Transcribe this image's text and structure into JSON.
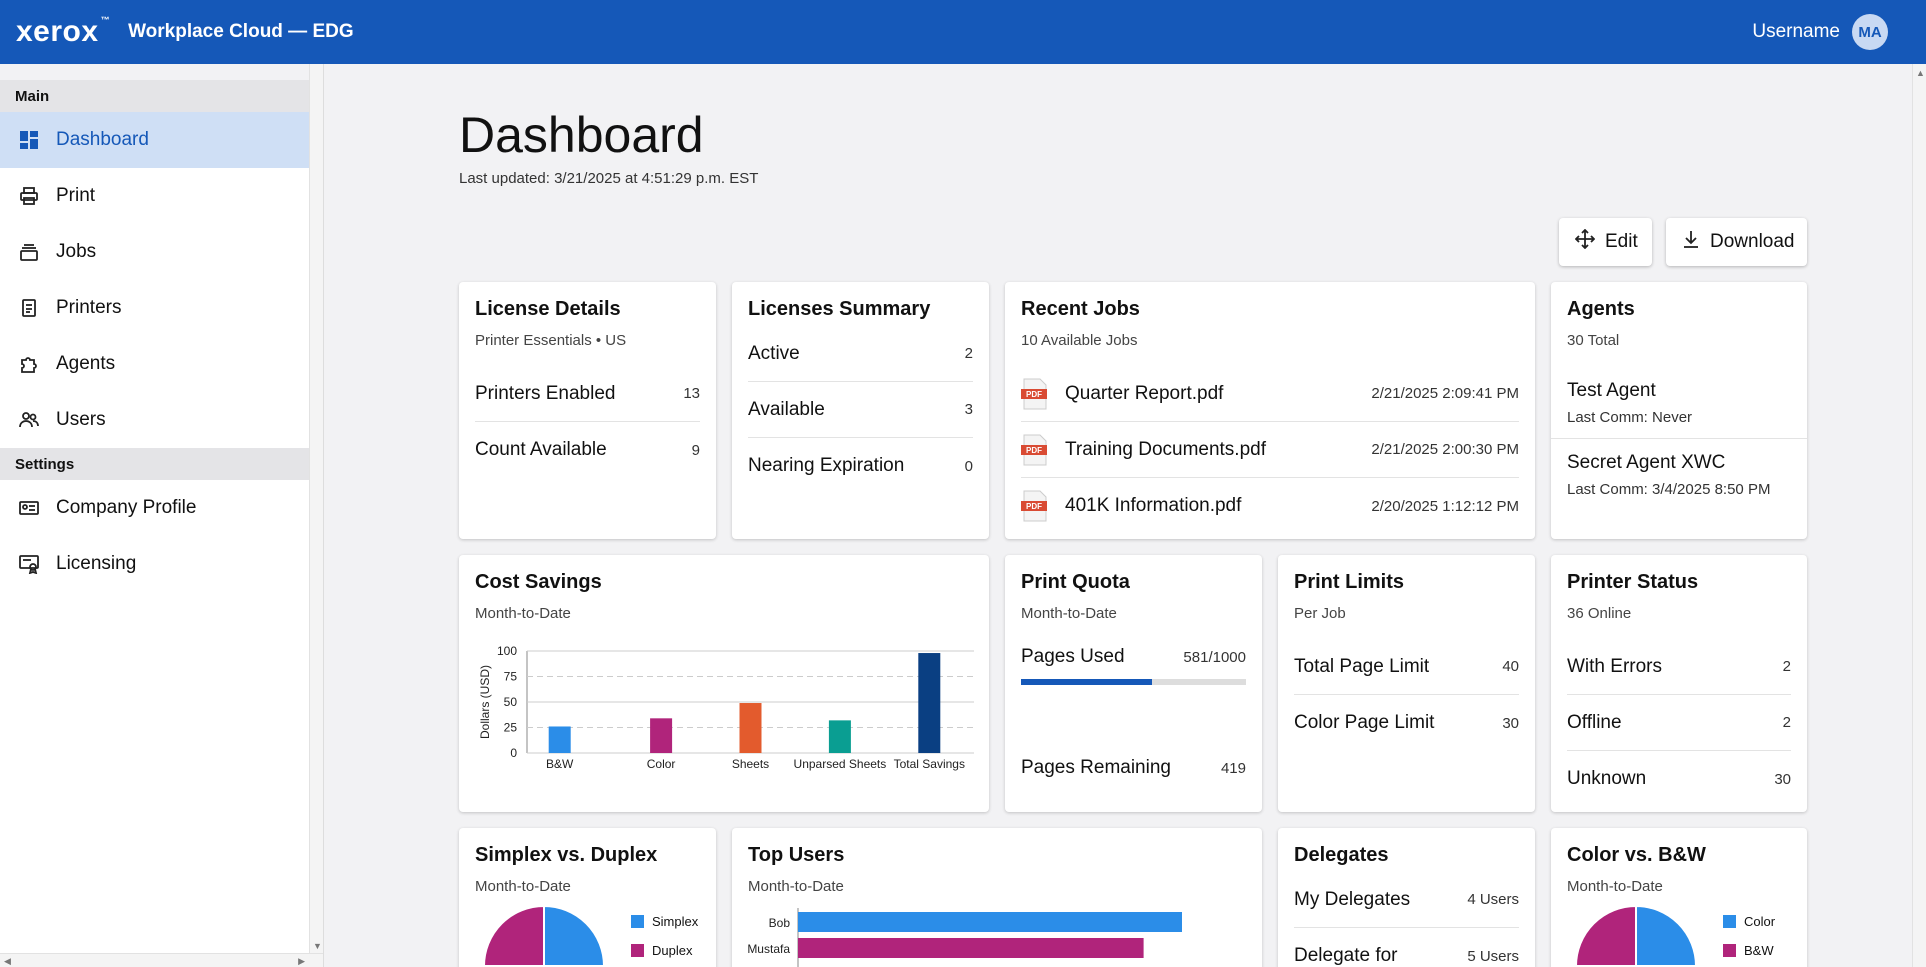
{
  "header": {
    "logo": "xerox",
    "logo_mark": "™",
    "product": "Workplace Cloud — EDG",
    "username": "Username",
    "avatar": "MA"
  },
  "sidebar": {
    "main_header": "Main",
    "main_items": [
      {
        "label": "Dashboard",
        "icon": "dashboard-icon"
      },
      {
        "label": "Print",
        "icon": "printer-icon"
      },
      {
        "label": "Jobs",
        "icon": "stack-icon"
      },
      {
        "label": "Printers",
        "icon": "device-icon"
      },
      {
        "label": "Agents",
        "icon": "puzzle-icon"
      },
      {
        "label": "Users",
        "icon": "users-icon"
      }
    ],
    "settings_header": "Settings",
    "settings_items": [
      {
        "label": "Company Profile",
        "icon": "id-card-icon"
      },
      {
        "label": "Licensing",
        "icon": "certificate-icon"
      }
    ]
  },
  "page": {
    "title": "Dashboard",
    "last_updated": "Last updated: 3/21/2025 at 4:51:29 p.m. EST"
  },
  "toolbar": {
    "edit_label": "Edit",
    "download_label": "Download"
  },
  "license_details": {
    "title": "License Details",
    "subtitle": "Printer Essentials • US",
    "rows": [
      {
        "label": "Printers Enabled",
        "value": "13"
      },
      {
        "label": "Count Available",
        "value": "9"
      }
    ]
  },
  "licenses_summary": {
    "title": "Licenses Summary",
    "rows": [
      {
        "label": "Active",
        "value": "2"
      },
      {
        "label": "Available",
        "value": "3"
      },
      {
        "label": "Nearing Expiration",
        "value": "0"
      }
    ]
  },
  "recent_jobs": {
    "title": "Recent Jobs",
    "subtitle": "10 Available Jobs",
    "pdf_badge": "PDF",
    "jobs": [
      {
        "name": "Quarter Report.pdf",
        "date": "2/21/2025 2:09:41 PM"
      },
      {
        "name": "Training Documents.pdf",
        "date": "2/21/2025 2:00:30 PM"
      },
      {
        "name": "401K Information.pdf",
        "date": "2/20/2025 1:12:12 PM"
      }
    ]
  },
  "agents": {
    "title": "Agents",
    "subtitle": "30 Total",
    "items": [
      {
        "name": "Test Agent",
        "meta": "Last Comm: Never"
      },
      {
        "name": "Secret Agent XWC",
        "meta": "Last Comm: 3/4/2025 8:50 PM"
      }
    ]
  },
  "cost_savings": {
    "title": "Cost Savings",
    "subtitle": "Month-to-Date"
  },
  "print_quota": {
    "title": "Print Quota",
    "subtitle": "Month-to-Date",
    "pages_used_label": "Pages Used",
    "pages_used_value": "581/1000",
    "used_fraction": 0.581,
    "pages_remaining_label": "Pages Remaining",
    "pages_remaining_value": "419"
  },
  "print_limits": {
    "title": "Print Limits",
    "subtitle": "Per Job",
    "rows": [
      {
        "label": "Total Page Limit",
        "value": "40"
      },
      {
        "label": "Color Page Limit",
        "value": "30"
      }
    ]
  },
  "printer_status": {
    "title": "Printer Status",
    "subtitle": "36 Online",
    "rows": [
      {
        "label": "With Errors",
        "value": "2"
      },
      {
        "label": "Offline",
        "value": "2"
      },
      {
        "label": "Unknown",
        "value": "30"
      }
    ]
  },
  "simplex_duplex": {
    "title": "Simplex vs. Duplex",
    "subtitle": "Month-to-Date",
    "legend": [
      {
        "label": "Simplex",
        "color": "#2b8de8"
      },
      {
        "label": "Duplex",
        "color": "#b0247b"
      }
    ]
  },
  "top_users": {
    "title": "Top Users",
    "subtitle": "Month-to-Date"
  },
  "delegates": {
    "title": "Delegates",
    "rows": [
      {
        "label": "My Delegates",
        "value": "4 Users"
      },
      {
        "label": "Delegate for",
        "value": "5 Users"
      }
    ]
  },
  "color_bw": {
    "title": "Color vs. B&W",
    "subtitle": "Month-to-Date",
    "legend": [
      {
        "label": "Color",
        "color": "#2b8de8"
      },
      {
        "label": "B&W",
        "color": "#b0247b"
      }
    ]
  },
  "chart_data": [
    {
      "type": "bar",
      "title": "",
      "ylabel": "Dollars (USD)",
      "ylim": [
        0,
        100
      ],
      "yticks": [
        0,
        25,
        50,
        75,
        100
      ],
      "categories": [
        "B&W",
        "Color",
        "Sheets",
        "Unparsed Sheets",
        "Total Savings"
      ],
      "values": [
        26,
        34,
        49,
        32,
        98
      ],
      "colors": [
        "#2b8de8",
        "#b0247b",
        "#e35b2d",
        "#0a9e92",
        "#0a3f82"
      ],
      "grid": true
    },
    {
      "type": "bar",
      "orientation": "horizontal",
      "title": "",
      "categories": [
        "Bob",
        "Mustafa"
      ],
      "values": [
        100,
        90
      ],
      "colors": [
        "#2b8de8",
        "#b0247b"
      ]
    },
    {
      "type": "pie",
      "title": "",
      "categories": [
        "Simplex",
        "Duplex"
      ],
      "values": [
        50,
        50
      ]
    },
    {
      "type": "pie",
      "title": "",
      "categories": [
        "Color",
        "B&W"
      ],
      "values": [
        50,
        50
      ]
    }
  ]
}
